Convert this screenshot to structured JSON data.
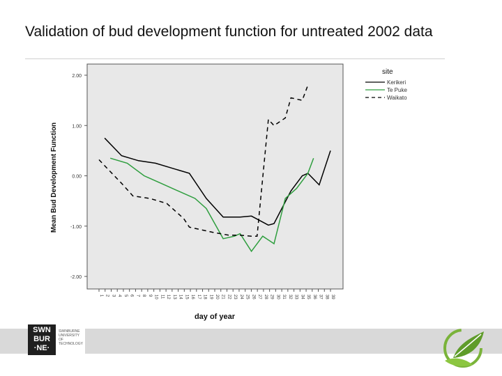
{
  "slide": {
    "title": "Validation of bud development function for untreated 2002 data"
  },
  "footer": {
    "logo_mark": "SWN\nBUR\n·NE·",
    "logo_text": "SWINBURNE\nUNIVERSITY OF\nTECHNOLOGY"
  },
  "chart_data": {
    "type": "line",
    "xlabel": "day of year",
    "ylabel": "Mean Bud Development Function",
    "ylim": [
      -2.0,
      2.0
    ],
    "yticks": [
      {
        "value": 2.0,
        "label": "2.00"
      },
      {
        "value": 1.0,
        "label": "1.00"
      },
      {
        "value": 0.0,
        "label": "0.00"
      },
      {
        "value": -1.0,
        "label": "-1.00"
      },
      {
        "value": -2.0,
        "label": "-2.00"
      }
    ],
    "categories": [
      "1",
      "2",
      "3",
      "4",
      "5",
      "6",
      "7",
      "8",
      "9",
      "10",
      "11",
      "12",
      "13",
      "14",
      "15",
      "16",
      "17",
      "18",
      "19",
      "20",
      "21",
      "22",
      "23",
      "24",
      "25",
      "26",
      "27",
      "28",
      "29",
      "30",
      "31",
      "32",
      "33",
      "34",
      "35",
      "36",
      "37",
      "38",
      "39"
    ],
    "grid": false,
    "legend_position": "top-right",
    "legend_title": "site",
    "series": [
      {
        "name": "Kerikeri",
        "color": "#000000",
        "dash": "solid",
        "points": [
          [
            2,
            0.75
          ],
          [
            5,
            0.4
          ],
          [
            8,
            0.3
          ],
          [
            11,
            0.25
          ],
          [
            14,
            0.15
          ],
          [
            17,
            0.05
          ],
          [
            20,
            -0.45
          ],
          [
            23,
            -0.82
          ],
          [
            26,
            -0.82
          ],
          [
            28,
            -0.8
          ],
          [
            31,
            -0.98
          ],
          [
            32,
            -0.95
          ],
          [
            35,
            -0.3
          ],
          [
            37,
            0.0
          ],
          [
            38,
            0.05
          ],
          [
            40,
            -0.18
          ],
          [
            42,
            0.5
          ]
        ]
      },
      {
        "name": "Te Puke",
        "color": "#2e9e3e",
        "dash": "solid",
        "points": [
          [
            3,
            0.35
          ],
          [
            6,
            0.25
          ],
          [
            9,
            0.0
          ],
          [
            12,
            -0.15
          ],
          [
            15,
            -0.3
          ],
          [
            18,
            -0.45
          ],
          [
            20,
            -0.65
          ],
          [
            23,
            -1.25
          ],
          [
            25,
            -1.2
          ],
          [
            26,
            -1.15
          ],
          [
            28,
            -1.5
          ],
          [
            30,
            -1.2
          ],
          [
            32,
            -1.35
          ],
          [
            34,
            -0.45
          ],
          [
            36,
            -0.25
          ],
          [
            38,
            0.05
          ],
          [
            39,
            0.35
          ]
        ]
      },
      {
        "name": "Waikato",
        "color": "#000000",
        "dash": "dashed",
        "points": [
          [
            1,
            0.32
          ],
          [
            2,
            0.2
          ],
          [
            5,
            -0.15
          ],
          [
            7,
            -0.4
          ],
          [
            10,
            -0.45
          ],
          [
            13,
            -0.55
          ],
          [
            16,
            -0.85
          ],
          [
            17,
            -1.02
          ],
          [
            21,
            -1.12
          ],
          [
            24,
            -1.18
          ],
          [
            26,
            -1.18
          ],
          [
            28,
            -1.2
          ],
          [
            29,
            -1.2
          ],
          [
            31,
            1.12
          ],
          [
            32,
            1.0
          ],
          [
            34,
            1.15
          ],
          [
            35,
            1.55
          ],
          [
            37,
            1.5
          ],
          [
            38,
            1.8
          ]
        ]
      }
    ]
  }
}
